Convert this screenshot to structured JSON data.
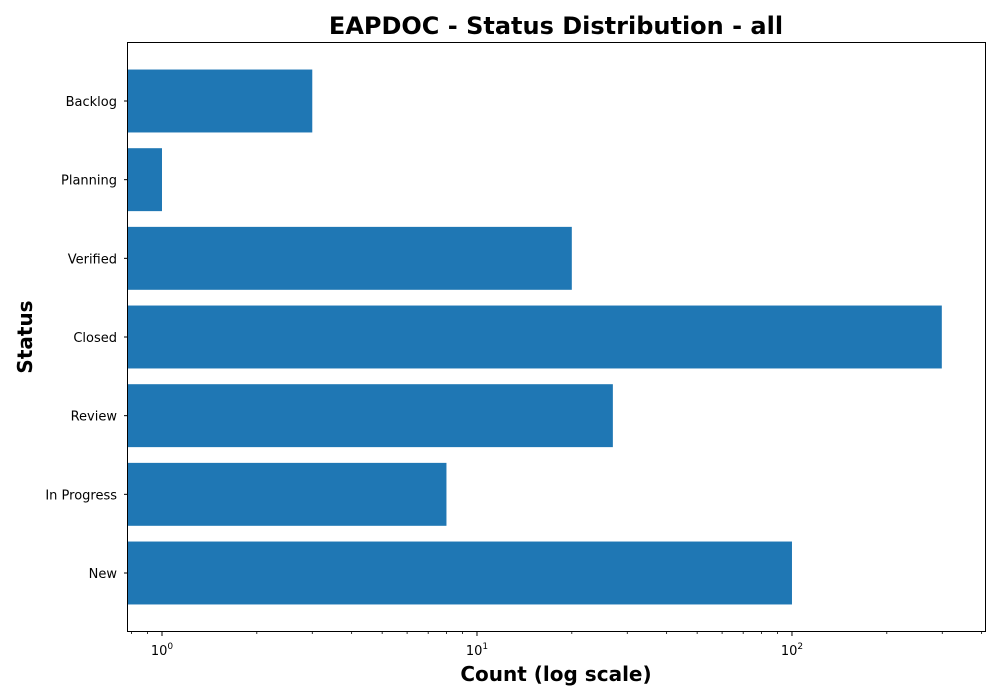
{
  "chart_data": {
    "type": "bar",
    "orientation": "horizontal",
    "title": "EAPDOC - Status Distribution - all",
    "xlabel": "Count (log scale)",
    "ylabel": "Status",
    "x_scale": "log",
    "xlim": [
      0.78,
      410
    ],
    "categories": [
      "New",
      "In Progress",
      "Review",
      "Closed",
      "Verified",
      "Planning",
      "Backlog"
    ],
    "values": [
      100,
      8,
      27,
      299,
      20,
      1,
      3
    ],
    "x_ticks": [
      {
        "base": "10",
        "exp": "0",
        "value": 1
      },
      {
        "base": "10",
        "exp": "1",
        "value": 10
      },
      {
        "base": "10",
        "exp": "2",
        "value": 100
      }
    ],
    "bar_color": "#1f77b4",
    "grid": false,
    "legend": "none"
  }
}
